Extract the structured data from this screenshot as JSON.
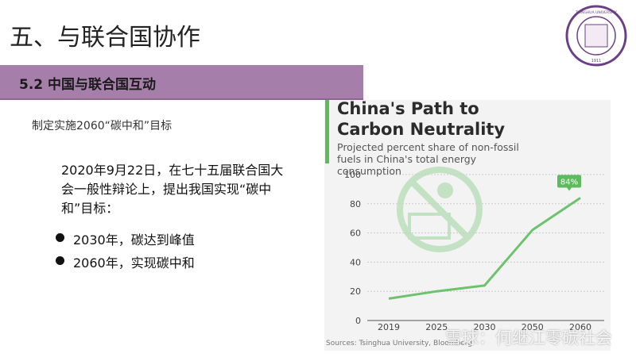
{
  "slide": {
    "title": "五、与联合国协作",
    "section": "5.2 中国与联合国互动",
    "goal": "制定实施2060“碳中和”目标",
    "paragraph": "2020年9月22日，在七十五届联合国大会一般性辩论上，提出我国实现“碳中和”目标：",
    "bullets": [
      "2030年，碳达到峰值",
      "2060年，实现碳中和"
    ],
    "logo": {
      "ring_text": "TSINGHUA UNIVERSITY",
      "year": "1911"
    },
    "watermark": "雪球：何继江零碳社会"
  },
  "chart_data": {
    "type": "line",
    "title": "China's Path to Carbon Neutrality",
    "subtitle": "Projected percent share of non-fossil fuels in China's total energy consumption",
    "source": "Sources: Tsinghua University, Bloomberg",
    "categories": [
      "2019",
      "2025",
      "2030",
      "2050",
      "2060"
    ],
    "values": [
      15,
      20,
      24,
      62,
      84
    ],
    "value_labels": [
      null,
      null,
      null,
      null,
      "84%"
    ],
    "color": "#6cc36c",
    "ylim": [
      0,
      100
    ],
    "yticks": [
      0,
      20,
      40,
      60,
      80,
      100
    ],
    "grid": true
  }
}
